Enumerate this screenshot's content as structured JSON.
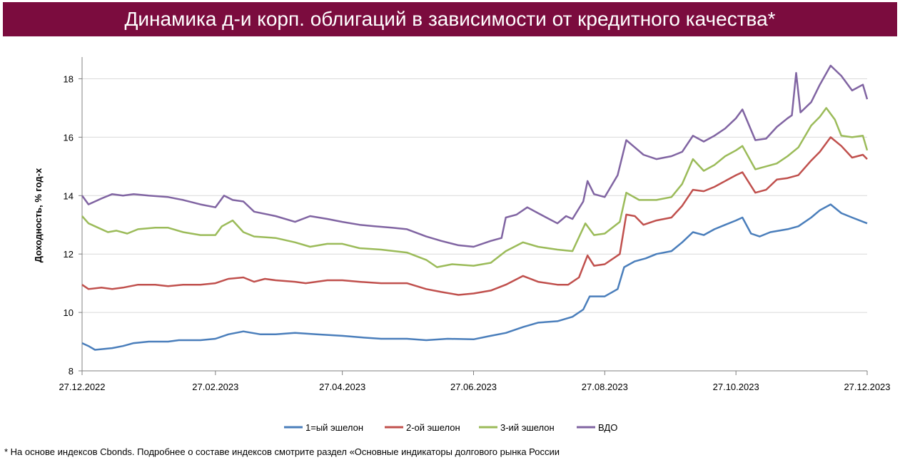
{
  "header": {
    "title": "Динамика д-и корп. облигаций в зависимости от кредитного качества*"
  },
  "footnote": "* На основе индексов Cbonds. Подробнее о составе индексов смотрите раздел «Основные индикаторы долгового рынка России",
  "chart_data": {
    "type": "line",
    "ylabel": "Доходность, % год-х",
    "ylim": [
      8,
      18.5
    ],
    "yticks": [
      8,
      10,
      12,
      14,
      16,
      18
    ],
    "xlim": [
      "2022-12-27",
      "2023-12-27"
    ],
    "xticks": [
      "2022-12-27",
      "2023-02-27",
      "2023-04-27",
      "2023-06-27",
      "2023-08-27",
      "2023-10-27",
      "2023-12-27"
    ],
    "xtick_labels": [
      "27.12.2022",
      "27.02.2023",
      "27.04.2023",
      "27.06.2023",
      "27.08.2023",
      "27.10.2023",
      "27.12.2023"
    ],
    "grid": "horizontal",
    "legend": "bottom",
    "series": [
      {
        "name": "1=ый эшелон",
        "color": "#4a7ebb",
        "points": [
          [
            "2022-12-27",
            8.95
          ],
          [
            "2022-12-30",
            8.85
          ],
          [
            "2023-01-02",
            8.72
          ],
          [
            "2023-01-10",
            8.78
          ],
          [
            "2023-01-15",
            8.85
          ],
          [
            "2023-01-20",
            8.95
          ],
          [
            "2023-01-27",
            9.0
          ],
          [
            "2023-02-05",
            9.0
          ],
          [
            "2023-02-10",
            9.05
          ],
          [
            "2023-02-20",
            9.05
          ],
          [
            "2023-02-27",
            9.1
          ],
          [
            "2023-03-05",
            9.25
          ],
          [
            "2023-03-12",
            9.35
          ],
          [
            "2023-03-20",
            9.25
          ],
          [
            "2023-03-27",
            9.25
          ],
          [
            "2023-04-05",
            9.3
          ],
          [
            "2023-04-15",
            9.25
          ],
          [
            "2023-04-27",
            9.2
          ],
          [
            "2023-05-05",
            9.15
          ],
          [
            "2023-05-15",
            9.1
          ],
          [
            "2023-05-27",
            9.1
          ],
          [
            "2023-06-05",
            9.05
          ],
          [
            "2023-06-15",
            9.1
          ],
          [
            "2023-06-27",
            9.08
          ],
          [
            "2023-07-05",
            9.2
          ],
          [
            "2023-07-12",
            9.3
          ],
          [
            "2023-07-20",
            9.5
          ],
          [
            "2023-07-27",
            9.65
          ],
          [
            "2023-08-05",
            9.7
          ],
          [
            "2023-08-12",
            9.85
          ],
          [
            "2023-08-17",
            10.1
          ],
          [
            "2023-08-20",
            10.55
          ],
          [
            "2023-08-27",
            10.55
          ],
          [
            "2023-09-02",
            10.8
          ],
          [
            "2023-09-05",
            11.55
          ],
          [
            "2023-09-10",
            11.75
          ],
          [
            "2023-09-15",
            11.85
          ],
          [
            "2023-09-20",
            12.0
          ],
          [
            "2023-09-27",
            12.1
          ],
          [
            "2023-10-02",
            12.4
          ],
          [
            "2023-10-07",
            12.75
          ],
          [
            "2023-10-12",
            12.65
          ],
          [
            "2023-10-17",
            12.85
          ],
          [
            "2023-10-22",
            13.0
          ],
          [
            "2023-10-27",
            13.15
          ],
          [
            "2023-10-30",
            13.25
          ],
          [
            "2023-11-03",
            12.7
          ],
          [
            "2023-11-07",
            12.6
          ],
          [
            "2023-11-12",
            12.75
          ],
          [
            "2023-11-20",
            12.85
          ],
          [
            "2023-11-25",
            12.95
          ],
          [
            "2023-12-01",
            13.25
          ],
          [
            "2023-12-05",
            13.5
          ],
          [
            "2023-12-10",
            13.7
          ],
          [
            "2023-12-15",
            13.4
          ],
          [
            "2023-12-20",
            13.25
          ],
          [
            "2023-12-27",
            13.05
          ]
        ]
      },
      {
        "name": "2-ой эшелон",
        "color": "#c0504d",
        "points": [
          [
            "2022-12-27",
            10.95
          ],
          [
            "2022-12-30",
            10.8
          ],
          [
            "2023-01-05",
            10.85
          ],
          [
            "2023-01-10",
            10.8
          ],
          [
            "2023-01-15",
            10.85
          ],
          [
            "2023-01-22",
            10.95
          ],
          [
            "2023-01-30",
            10.95
          ],
          [
            "2023-02-05",
            10.9
          ],
          [
            "2023-02-12",
            10.95
          ],
          [
            "2023-02-20",
            10.95
          ],
          [
            "2023-02-27",
            11.0
          ],
          [
            "2023-03-05",
            11.15
          ],
          [
            "2023-03-12",
            11.2
          ],
          [
            "2023-03-17",
            11.05
          ],
          [
            "2023-03-22",
            11.15
          ],
          [
            "2023-03-27",
            11.1
          ],
          [
            "2023-04-05",
            11.05
          ],
          [
            "2023-04-10",
            11.0
          ],
          [
            "2023-04-20",
            11.1
          ],
          [
            "2023-04-27",
            11.1
          ],
          [
            "2023-05-05",
            11.05
          ],
          [
            "2023-05-15",
            11.0
          ],
          [
            "2023-05-27",
            11.0
          ],
          [
            "2023-06-05",
            10.8
          ],
          [
            "2023-06-12",
            10.7
          ],
          [
            "2023-06-20",
            10.6
          ],
          [
            "2023-06-27",
            10.65
          ],
          [
            "2023-07-05",
            10.75
          ],
          [
            "2023-07-12",
            10.95
          ],
          [
            "2023-07-20",
            11.25
          ],
          [
            "2023-07-27",
            11.05
          ],
          [
            "2023-08-05",
            10.95
          ],
          [
            "2023-08-10",
            10.95
          ],
          [
            "2023-08-15",
            11.2
          ],
          [
            "2023-08-19",
            11.95
          ],
          [
            "2023-08-22",
            11.6
          ],
          [
            "2023-08-27",
            11.65
          ],
          [
            "2023-09-03",
            12.0
          ],
          [
            "2023-09-06",
            13.35
          ],
          [
            "2023-09-10",
            13.3
          ],
          [
            "2023-09-14",
            13.0
          ],
          [
            "2023-09-20",
            13.15
          ],
          [
            "2023-09-27",
            13.25
          ],
          [
            "2023-10-02",
            13.65
          ],
          [
            "2023-10-07",
            14.2
          ],
          [
            "2023-10-12",
            14.15
          ],
          [
            "2023-10-17",
            14.3
          ],
          [
            "2023-10-22",
            14.5
          ],
          [
            "2023-10-27",
            14.7
          ],
          [
            "2023-10-30",
            14.8
          ],
          [
            "2023-11-05",
            14.1
          ],
          [
            "2023-11-10",
            14.2
          ],
          [
            "2023-11-15",
            14.55
          ],
          [
            "2023-11-20",
            14.6
          ],
          [
            "2023-11-25",
            14.7
          ],
          [
            "2023-12-01",
            15.2
          ],
          [
            "2023-12-05",
            15.5
          ],
          [
            "2023-12-10",
            16.0
          ],
          [
            "2023-12-15",
            15.7
          ],
          [
            "2023-12-20",
            15.3
          ],
          [
            "2023-12-25",
            15.4
          ],
          [
            "2023-12-27",
            15.25
          ]
        ]
      },
      {
        "name": "3-ий эшелон",
        "color": "#9bbb59",
        "points": [
          [
            "2022-12-27",
            13.3
          ],
          [
            "2022-12-30",
            13.05
          ],
          [
            "2023-01-02",
            12.95
          ],
          [
            "2023-01-08",
            12.75
          ],
          [
            "2023-01-12",
            12.8
          ],
          [
            "2023-01-17",
            12.7
          ],
          [
            "2023-01-22",
            12.85
          ],
          [
            "2023-01-30",
            12.9
          ],
          [
            "2023-02-05",
            12.9
          ],
          [
            "2023-02-12",
            12.75
          ],
          [
            "2023-02-20",
            12.65
          ],
          [
            "2023-02-27",
            12.65
          ],
          [
            "2023-03-02",
            12.95
          ],
          [
            "2023-03-07",
            13.15
          ],
          [
            "2023-03-12",
            12.75
          ],
          [
            "2023-03-17",
            12.6
          ],
          [
            "2023-03-27",
            12.55
          ],
          [
            "2023-04-05",
            12.4
          ],
          [
            "2023-04-12",
            12.25
          ],
          [
            "2023-04-20",
            12.35
          ],
          [
            "2023-04-27",
            12.35
          ],
          [
            "2023-05-05",
            12.2
          ],
          [
            "2023-05-15",
            12.15
          ],
          [
            "2023-05-27",
            12.05
          ],
          [
            "2023-06-05",
            11.8
          ],
          [
            "2023-06-10",
            11.55
          ],
          [
            "2023-06-17",
            11.65
          ],
          [
            "2023-06-27",
            11.6
          ],
          [
            "2023-07-05",
            11.7
          ],
          [
            "2023-07-12",
            12.1
          ],
          [
            "2023-07-20",
            12.4
          ],
          [
            "2023-07-27",
            12.25
          ],
          [
            "2023-08-05",
            12.15
          ],
          [
            "2023-08-12",
            12.1
          ],
          [
            "2023-08-18",
            13.05
          ],
          [
            "2023-08-22",
            12.65
          ],
          [
            "2023-08-27",
            12.7
          ],
          [
            "2023-09-03",
            13.1
          ],
          [
            "2023-09-06",
            14.1
          ],
          [
            "2023-09-12",
            13.85
          ],
          [
            "2023-09-20",
            13.85
          ],
          [
            "2023-09-27",
            13.95
          ],
          [
            "2023-10-02",
            14.4
          ],
          [
            "2023-10-07",
            15.25
          ],
          [
            "2023-10-12",
            14.85
          ],
          [
            "2023-10-17",
            15.05
          ],
          [
            "2023-10-22",
            15.35
          ],
          [
            "2023-10-27",
            15.55
          ],
          [
            "2023-10-30",
            15.7
          ],
          [
            "2023-11-05",
            14.9
          ],
          [
            "2023-11-10",
            15.0
          ],
          [
            "2023-11-15",
            15.1
          ],
          [
            "2023-11-20",
            15.35
          ],
          [
            "2023-11-25",
            15.65
          ],
          [
            "2023-12-01",
            16.4
          ],
          [
            "2023-12-05",
            16.7
          ],
          [
            "2023-12-08",
            17.0
          ],
          [
            "2023-12-12",
            16.6
          ],
          [
            "2023-12-15",
            16.05
          ],
          [
            "2023-12-20",
            16.0
          ],
          [
            "2023-12-25",
            16.05
          ],
          [
            "2023-12-27",
            15.55
          ]
        ]
      },
      {
        "name": "ВДО",
        "color": "#8064a2",
        "points": [
          [
            "2022-12-27",
            14.0
          ],
          [
            "2022-12-30",
            13.7
          ],
          [
            "2023-01-05",
            13.9
          ],
          [
            "2023-01-10",
            14.05
          ],
          [
            "2023-01-15",
            14.0
          ],
          [
            "2023-01-20",
            14.05
          ],
          [
            "2023-01-27",
            14.0
          ],
          [
            "2023-02-05",
            13.95
          ],
          [
            "2023-02-12",
            13.85
          ],
          [
            "2023-02-20",
            13.7
          ],
          [
            "2023-02-27",
            13.6
          ],
          [
            "2023-03-03",
            14.0
          ],
          [
            "2023-03-07",
            13.85
          ],
          [
            "2023-03-12",
            13.8
          ],
          [
            "2023-03-17",
            13.45
          ],
          [
            "2023-03-27",
            13.3
          ],
          [
            "2023-04-05",
            13.1
          ],
          [
            "2023-04-12",
            13.3
          ],
          [
            "2023-04-20",
            13.2
          ],
          [
            "2023-04-27",
            13.1
          ],
          [
            "2023-05-05",
            13.0
          ],
          [
            "2023-05-12",
            12.95
          ],
          [
            "2023-05-20",
            12.9
          ],
          [
            "2023-05-27",
            12.85
          ],
          [
            "2023-06-05",
            12.6
          ],
          [
            "2023-06-12",
            12.45
          ],
          [
            "2023-06-20",
            12.3
          ],
          [
            "2023-06-27",
            12.25
          ],
          [
            "2023-07-05",
            12.45
          ],
          [
            "2023-07-10",
            12.55
          ],
          [
            "2023-07-12",
            13.25
          ],
          [
            "2023-07-17",
            13.35
          ],
          [
            "2023-07-22",
            13.6
          ],
          [
            "2023-07-27",
            13.4
          ],
          [
            "2023-08-05",
            13.05
          ],
          [
            "2023-08-09",
            13.3
          ],
          [
            "2023-08-12",
            13.2
          ],
          [
            "2023-08-17",
            13.8
          ],
          [
            "2023-08-19",
            14.5
          ],
          [
            "2023-08-22",
            14.05
          ],
          [
            "2023-08-27",
            13.95
          ],
          [
            "2023-09-02",
            14.7
          ],
          [
            "2023-09-06",
            15.9
          ],
          [
            "2023-09-10",
            15.65
          ],
          [
            "2023-09-14",
            15.4
          ],
          [
            "2023-09-20",
            15.25
          ],
          [
            "2023-09-27",
            15.35
          ],
          [
            "2023-10-02",
            15.5
          ],
          [
            "2023-10-07",
            16.05
          ],
          [
            "2023-10-12",
            15.85
          ],
          [
            "2023-10-17",
            16.05
          ],
          [
            "2023-10-22",
            16.3
          ],
          [
            "2023-10-27",
            16.65
          ],
          [
            "2023-10-30",
            16.95
          ],
          [
            "2023-11-05",
            15.9
          ],
          [
            "2023-11-10",
            15.95
          ],
          [
            "2023-11-15",
            16.35
          ],
          [
            "2023-11-20",
            16.65
          ],
          [
            "2023-11-22",
            16.75
          ],
          [
            "2023-11-24",
            18.2
          ],
          [
            "2023-11-26",
            16.85
          ],
          [
            "2023-12-01",
            17.2
          ],
          [
            "2023-12-05",
            17.8
          ],
          [
            "2023-12-10",
            18.45
          ],
          [
            "2023-12-15",
            18.1
          ],
          [
            "2023-12-20",
            17.6
          ],
          [
            "2023-12-25",
            17.8
          ],
          [
            "2023-12-27",
            17.3
          ]
        ]
      }
    ]
  }
}
